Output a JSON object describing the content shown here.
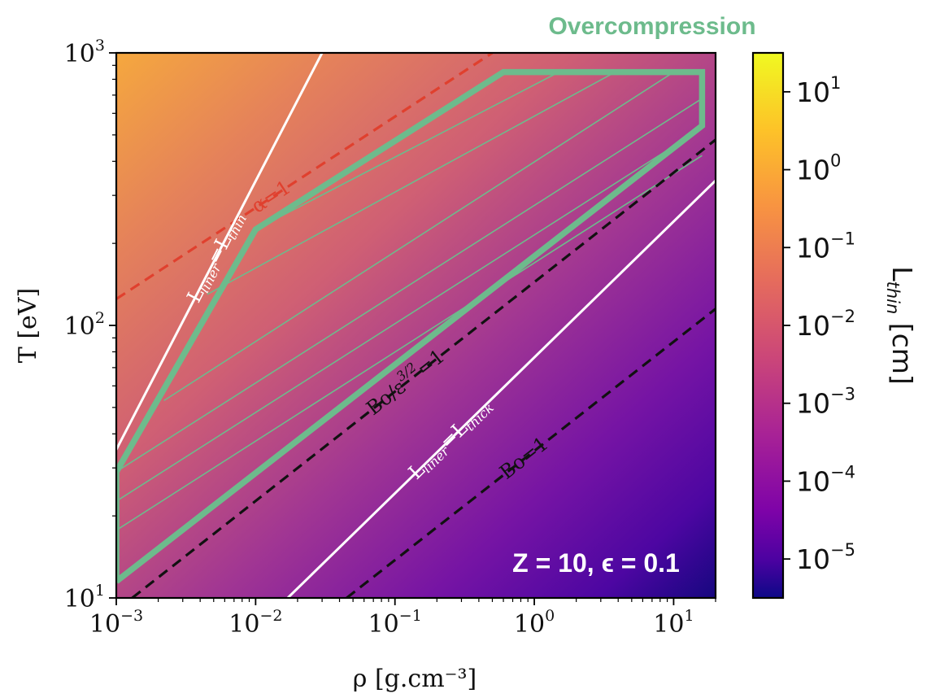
{
  "title": "Overcompression",
  "annotation": "Z = 10, ϵ = 0.1",
  "colors": {
    "region": "#6dbb8c",
    "alpha_line": "#e0402e",
    "white_lines": "#ffffff",
    "black_lines": "#111111"
  },
  "chart_data": {
    "type": "heatmap",
    "colormap": "plasma",
    "xlabel": "ρ [g.cm⁻³]",
    "ylabel": "T [eV]",
    "xscale": "log",
    "yscale": "log",
    "xlim": [
      0.001,
      20
    ],
    "ylim": [
      10,
      1000
    ],
    "x_ticks": [
      {
        "value": 0.001,
        "base": "10",
        "exp": "−3"
      },
      {
        "value": 0.01,
        "base": "10",
        "exp": "−2"
      },
      {
        "value": 0.1,
        "base": "10",
        "exp": "−1"
      },
      {
        "value": 1,
        "base": "10",
        "exp": "0"
      },
      {
        "value": 10,
        "base": "10",
        "exp": "1"
      }
    ],
    "y_ticks": [
      {
        "value": 10,
        "base": "10",
        "exp": "1"
      },
      {
        "value": 100,
        "base": "10",
        "exp": "2"
      },
      {
        "value": 1000,
        "base": "10",
        "exp": "3"
      }
    ],
    "colorbar": {
      "label_base": "L",
      "label_sub": "thin",
      "label_unit": " [cm]",
      "range_log10": [
        -5.5,
        1.5
      ],
      "ticks": [
        {
          "log10": 1,
          "base": "10",
          "exp": "1"
        },
        {
          "log10": 0,
          "base": "10",
          "exp": "0"
        },
        {
          "log10": -1,
          "base": "10",
          "exp": "−1"
        },
        {
          "log10": -2,
          "base": "10",
          "exp": "−2"
        },
        {
          "log10": -3,
          "base": "10",
          "exp": "−3"
        },
        {
          "log10": -4,
          "base": "10",
          "exp": "−4"
        },
        {
          "log10": -5,
          "base": "10",
          "exp": "−5"
        }
      ]
    },
    "curves": [
      {
        "id": "alpha1",
        "label": "α=1",
        "style": "dashed",
        "color": "#e0402e",
        "points": [
          [
            0.001,
            125
          ],
          [
            0.5,
            1000
          ]
        ]
      },
      {
        "id": "liner_thin",
        "label_base": "L",
        "label_sub": "liner",
        "label_mid": "=L",
        "label_sub2": "thin",
        "style": "solid",
        "color": "#ffffff",
        "points": [
          [
            0.001,
            35
          ],
          [
            0.03,
            1000
          ]
        ]
      },
      {
        "id": "bo_eps",
        "label_base": "Bo/ε",
        "label_sup": "3/2",
        "label_rest": "=1",
        "style": "dashed",
        "color": "#111111",
        "points": [
          [
            0.0013,
            10
          ],
          [
            20,
            480
          ]
        ]
      },
      {
        "id": "liner_thick",
        "label_base": "L",
        "label_sub": "liner",
        "label_mid": "=L",
        "label_sub2": "thick",
        "style": "solid",
        "color": "#ffffff",
        "points": [
          [
            0.017,
            10
          ],
          [
            20,
            340
          ]
        ]
      },
      {
        "id": "bo1",
        "label": "Bo=1",
        "style": "dashed",
        "color": "#111111",
        "points": [
          [
            0.045,
            10
          ],
          [
            20,
            115
          ]
        ]
      }
    ],
    "region": {
      "label": "Overcompression",
      "boundary": [
        [
          0.001,
          11.5
        ],
        [
          0.001,
          29
        ],
        [
          0.01,
          225
        ],
        [
          0.6,
          850
        ],
        [
          16,
          850
        ],
        [
          16,
          540
        ],
        [
          0.001,
          11.5
        ]
      ]
    },
    "hatch_lines": [
      [
        [
          0.00105,
          29.5
        ],
        [
          16,
          680
        ]
      ],
      [
        [
          0.00105,
          23
        ],
        [
          16,
          530
        ]
      ],
      [
        [
          0.00105,
          18
        ],
        [
          16,
          420
        ]
      ],
      [
        [
          0.0022,
          53
        ],
        [
          10,
          850
        ]
      ],
      [
        [
          0.0045,
          130
        ],
        [
          3.8,
          850
        ]
      ],
      [
        [
          0.01,
          225
        ],
        [
          1.5,
          850
        ]
      ]
    ]
  }
}
